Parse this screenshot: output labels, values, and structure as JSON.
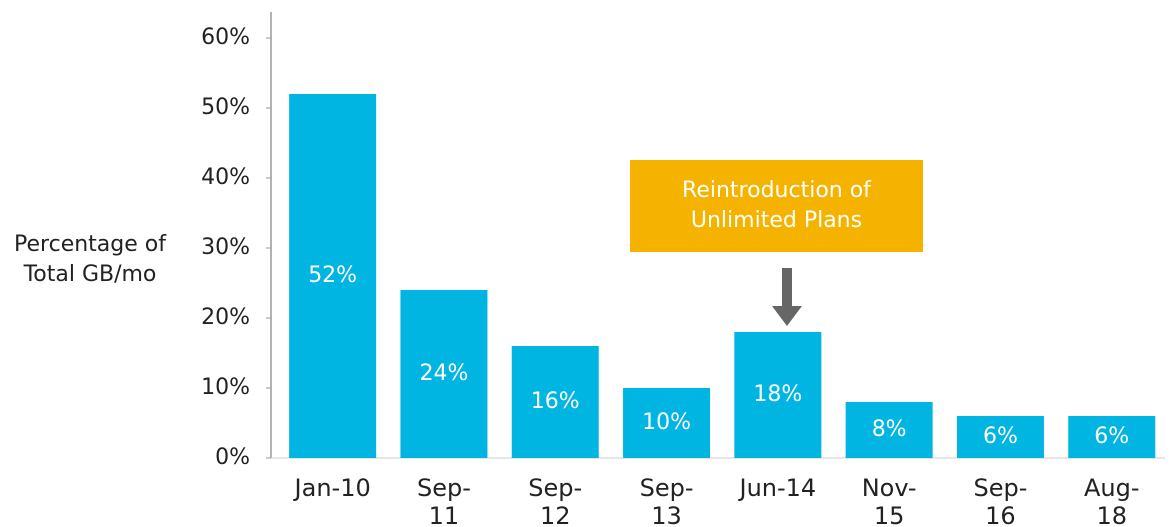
{
  "chart_data": {
    "type": "bar",
    "y_label": "Percentage of Total GB/mo",
    "annotation": "Reintroduction of Unlimited Plans",
    "annotation_color": "#f5b300",
    "categories": [
      "Jan-10",
      "Sep-11",
      "Sep-12",
      "Sep-13",
      "Jun-14",
      "Nov-15",
      "Sep-16",
      "Aug-18"
    ],
    "values": [
      52,
      24,
      16,
      10,
      18,
      8,
      6,
      6
    ],
    "value_labels": [
      "52%",
      "24%",
      "16%",
      "10%",
      "18%",
      "8%",
      "6%",
      "6%"
    ],
    "color": "#00b5e2",
    "ylim": [
      0,
      60
    ],
    "yticks": [
      {
        "value": 0,
        "label": "0%"
      },
      {
        "value": 10,
        "label": "10%"
      },
      {
        "value": 20,
        "label": "20%"
      },
      {
        "value": 30,
        "label": "30%"
      },
      {
        "value": 40,
        "label": "40%"
      },
      {
        "value": 50,
        "label": "50%"
      },
      {
        "value": 60,
        "label": "60%"
      }
    ],
    "grid": false
  }
}
